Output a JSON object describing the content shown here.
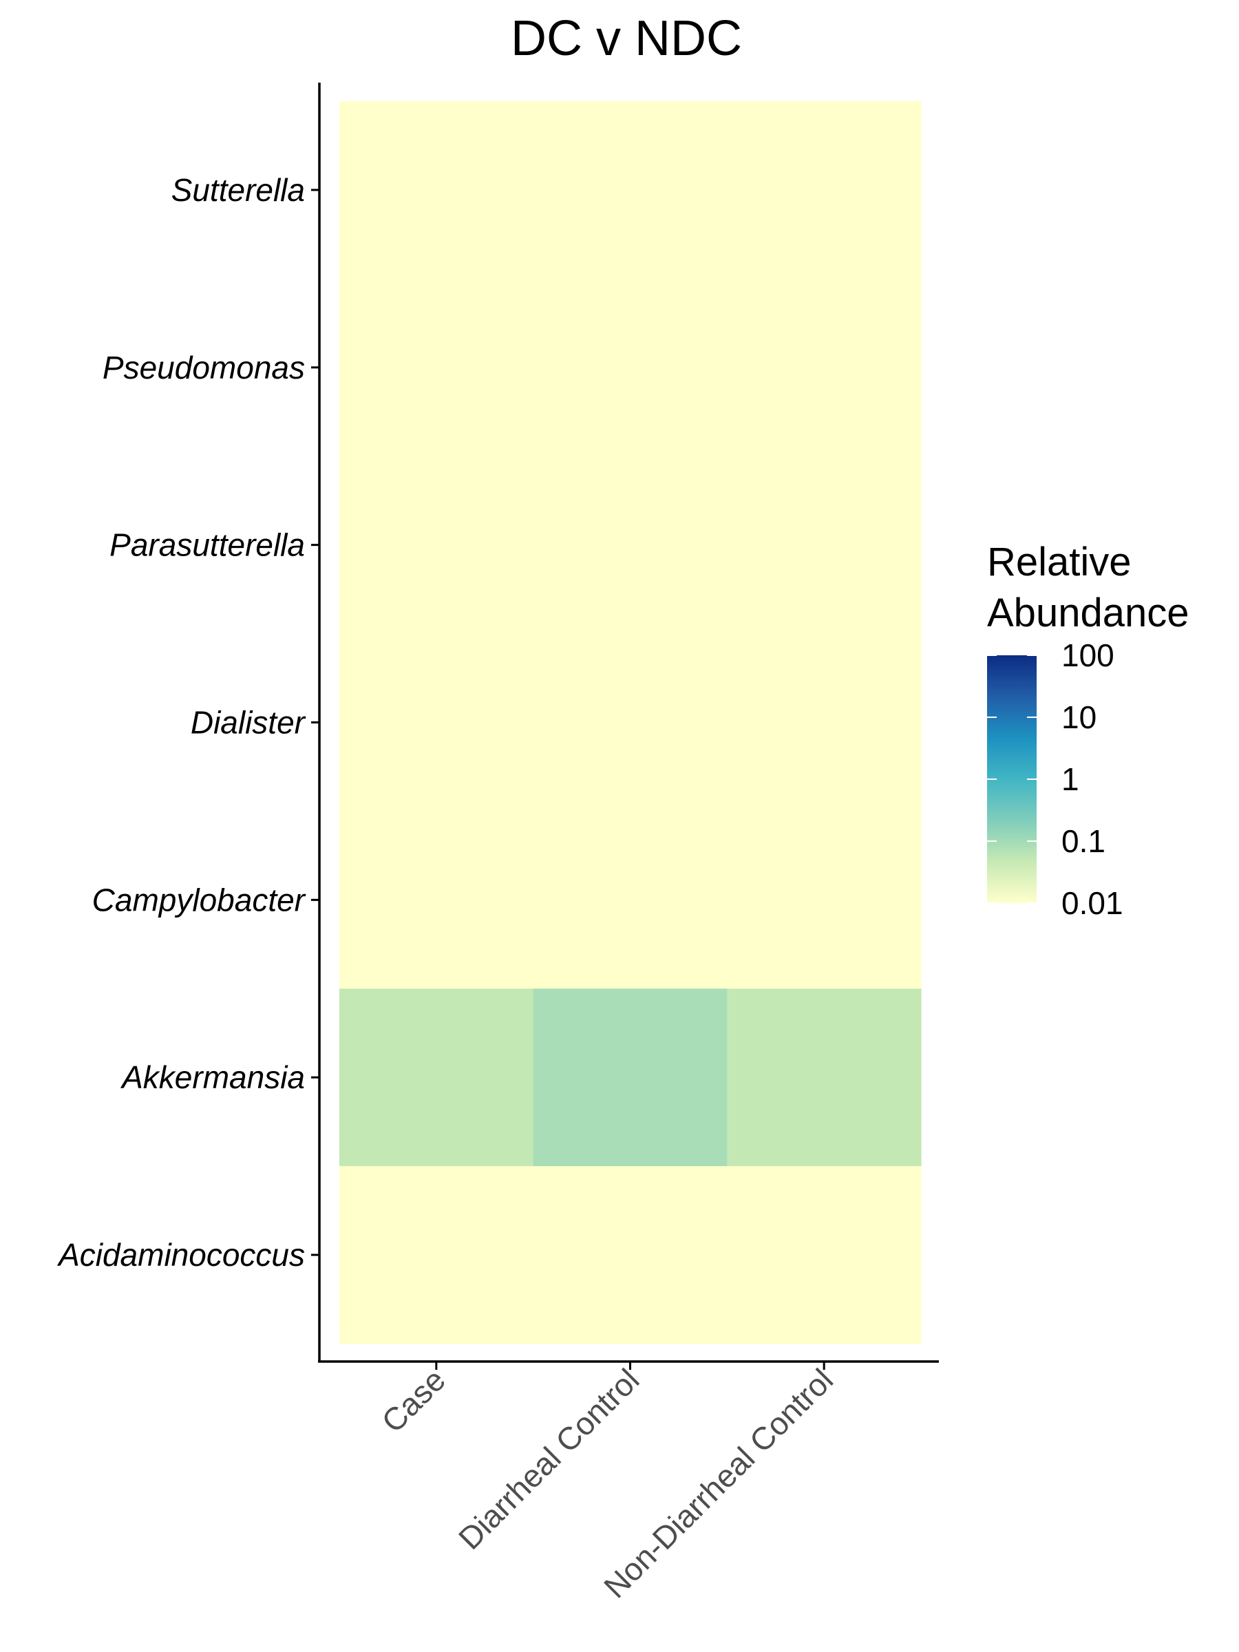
{
  "chart_data": {
    "type": "heatmap",
    "title": "DC v NDC",
    "xlabel": "",
    "ylabel": "",
    "x_categories": [
      "Case",
      "Diarrheal Control",
      "Non-Diarrheal Control"
    ],
    "y_categories": [
      "Sutterella",
      "Pseudomonas",
      "Parasutterella",
      "Dialister",
      "Campylobacter",
      "Akkermansia",
      "Acidaminococcus"
    ],
    "values": [
      [
        0.01,
        0.01,
        0.01
      ],
      [
        0.01,
        0.01,
        0.01
      ],
      [
        0.01,
        0.01,
        0.01
      ],
      [
        0.01,
        0.01,
        0.01
      ],
      [
        0.01,
        0.01,
        0.01
      ],
      [
        0.05,
        0.09,
        0.05
      ],
      [
        0.01,
        0.01,
        0.01
      ]
    ],
    "color_scale": {
      "type": "log",
      "domain": [
        0.01,
        100
      ],
      "palette": "YlGnBu",
      "stops": [
        "#ffffcc",
        "#c7e9b4",
        "#7fcdbb",
        "#41b6c4",
        "#1d91c0",
        "#225ea8",
        "#0c2c84"
      ]
    },
    "legend": {
      "title_lines": [
        "Relative",
        "Abundance"
      ],
      "ticks": [
        "100",
        "10",
        "1",
        "0.1",
        "0.01"
      ],
      "tick_values": [
        100,
        10,
        1,
        0.1,
        0.01
      ],
      "position": "right"
    }
  }
}
